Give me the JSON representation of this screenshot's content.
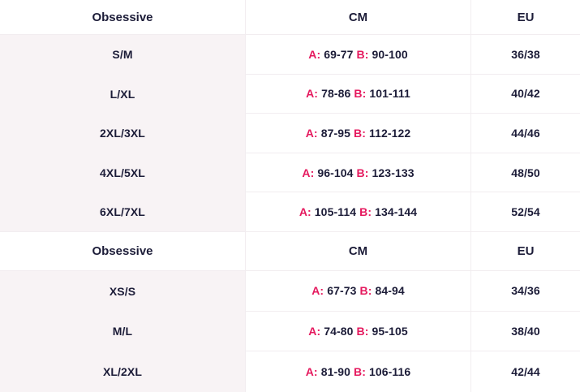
{
  "colors": {
    "accent": "#e5195e",
    "text": "#1c1c38",
    "first_column_bg": "#f8f3f5",
    "divider": "#f2edf0",
    "background": "#ffffff"
  },
  "tables": [
    {
      "header": {
        "brand": "Obsessive",
        "cm": "CM",
        "eu": "EU"
      },
      "rows": [
        {
          "size": "S/M",
          "a_label": "A:",
          "a": "69-77",
          "b_label": "B:",
          "b": "90-100",
          "eu": "36/38"
        },
        {
          "size": "L/XL",
          "a_label": "A:",
          "a": "78-86",
          "b_label": "B:",
          "b": "101-111",
          "eu": "40/42"
        },
        {
          "size": "2XL/3XL",
          "a_label": "A:",
          "a": "87-95",
          "b_label": "B:",
          "b": "112-122",
          "eu": "44/46"
        },
        {
          "size": "4XL/5XL",
          "a_label": "A:",
          "a": "96-104",
          "b_label": "B:",
          "b": "123-133",
          "eu": "48/50"
        },
        {
          "size": "6XL/7XL",
          "a_label": "A:",
          "a": "105-114",
          "b_label": "B:",
          "b": "134-144",
          "eu": "52/54"
        }
      ]
    },
    {
      "header": {
        "brand": "Obsessive",
        "cm": "CM",
        "eu": "EU"
      },
      "rows": [
        {
          "size": "XS/S",
          "a_label": "A:",
          "a": "67-73",
          "b_label": "B:",
          "b": "84-94",
          "eu": "34/36"
        },
        {
          "size": "M/L",
          "a_label": "A:",
          "a": "74-80",
          "b_label": "B:",
          "b": "95-105",
          "eu": "38/40"
        },
        {
          "size": "XL/2XL",
          "a_label": "A:",
          "a": "81-90",
          "b_label": "B:",
          "b": "106-116",
          "eu": "42/44"
        }
      ]
    }
  ]
}
